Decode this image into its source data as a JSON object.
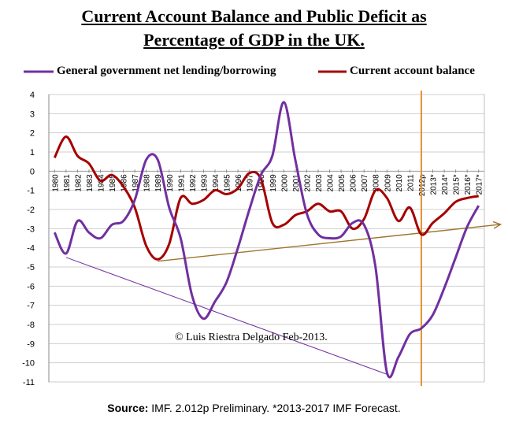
{
  "title_line1": "Current Account Balance and Public Deficit as",
  "title_line2": "Percentage of GDP in the UK.",
  "footer": {
    "source_label": "Source:",
    "source_rest": " IMF. 2.012p  Preliminary. *2013-2017  IMF Forecast."
  },
  "copyright": "© Luis Riestra Delgado Feb-2013.",
  "colors": {
    "deficit": "#7030A0",
    "current_account": "#A50000",
    "forecast_line": "#E8902A",
    "trend_gold": "#A0742C",
    "trend_purple": "#7030A0"
  },
  "chart_data": {
    "type": "line",
    "categories": [
      "1980",
      "1981",
      "1982",
      "1983",
      "1984",
      "1985",
      "1986",
      "1987",
      "1988",
      "1989",
      "1990",
      "1991",
      "1992",
      "1993",
      "1994",
      "1995",
      "1996",
      "1997",
      "1998",
      "1999",
      "2000",
      "2001",
      "2002",
      "2003",
      "2004",
      "2005",
      "2006",
      "2007",
      "2008",
      "2009",
      "2010",
      "2011",
      "2012p",
      "2013*",
      "2014*",
      "2015*",
      "2016*",
      "2017*"
    ],
    "series": [
      {
        "name": "General government net lending/borrowing",
        "color": "#7030A0",
        "values": [
          -3.2,
          -4.3,
          -2.6,
          -3.2,
          -3.5,
          -2.8,
          -2.6,
          -1.5,
          0.6,
          0.6,
          -1.9,
          -3.5,
          -6.5,
          -7.7,
          -6.8,
          -5.8,
          -4.0,
          -2.0,
          -0.2,
          0.8,
          3.6,
          0.6,
          -2.2,
          -3.3,
          -3.5,
          -3.4,
          -2.7,
          -2.8,
          -5.0,
          -10.5,
          -9.7,
          -8.5,
          -8.2,
          -7.5,
          -6.1,
          -4.5,
          -2.9,
          -1.8
        ]
      },
      {
        "name": "Current account balance",
        "color": "#A50000",
        "values": [
          0.7,
          1.8,
          0.8,
          0.4,
          -0.5,
          -0.2,
          -0.8,
          -1.9,
          -3.9,
          -4.6,
          -3.8,
          -1.4,
          -1.7,
          -1.5,
          -1.0,
          -1.2,
          -0.9,
          -0.1,
          -0.4,
          -2.7,
          -2.8,
          -2.3,
          -2.1,
          -1.7,
          -2.1,
          -2.1,
          -3.0,
          -2.5,
          -1.0,
          -1.4,
          -2.6,
          -1.9,
          -3.3,
          -2.7,
          -2.2,
          -1.6,
          -1.4,
          -1.3
        ]
      }
    ],
    "ylim": [
      -11,
      4
    ],
    "yticks": [
      "4",
      "3",
      "2",
      "1",
      "0",
      "-1",
      "-2",
      "-3",
      "-4",
      "-5",
      "-6",
      "-7",
      "-8",
      "-9",
      "-10",
      "-11"
    ],
    "grid": "horizontal",
    "legend": "top",
    "forecast_start": "2012p",
    "annotations": [
      {
        "type": "arrow",
        "from": {
          "x": "1989",
          "y": -4.7
        },
        "to": {
          "x": "2017*",
          "y": -2.9
        },
        "color": "#A0742C"
      },
      {
        "type": "line",
        "from": {
          "x": "1981",
          "y": -4.5
        },
        "to": {
          "x": "2009",
          "y": -10.6
        },
        "color": "#7030A0"
      }
    ]
  }
}
